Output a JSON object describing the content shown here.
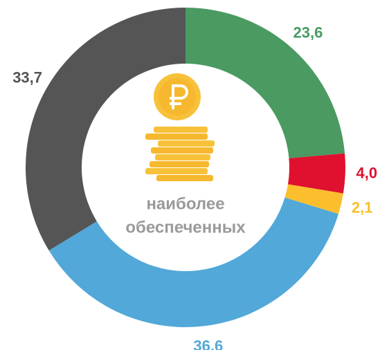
{
  "chart_data": {
    "type": "donut",
    "categories": [
      "23,6",
      "4,0",
      "2,1",
      "36,6",
      "33,7"
    ],
    "values": [
      23.6,
      4.0,
      2.1,
      36.6,
      33.7
    ],
    "value_labels": [
      "23,6",
      "4,0",
      "2,1",
      "36,6",
      "33,7"
    ],
    "colors": [
      "#4a9a62",
      "#e0112f",
      "#fbbf2d",
      "#52a8d8",
      "#555555"
    ],
    "center_text": [
      "наиболее",
      "обеспеченных"
    ]
  }
}
